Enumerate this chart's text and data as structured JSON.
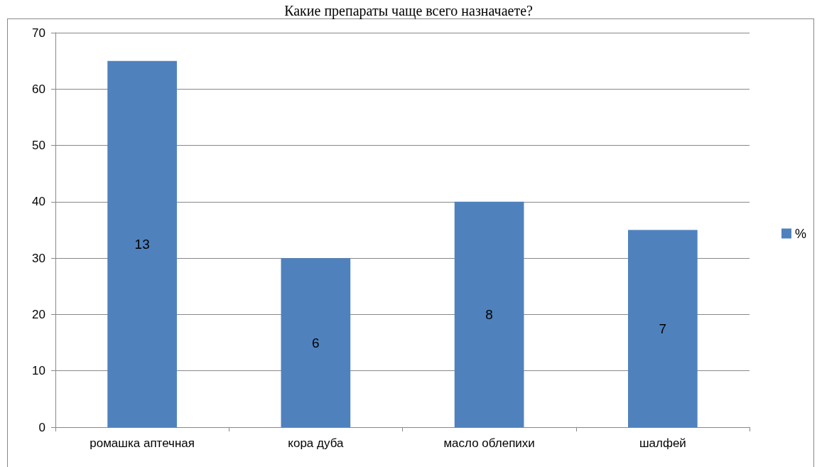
{
  "chart_data": {
    "type": "bar",
    "title": "Какие препараты чаще всего назначаете?",
    "categories": [
      "ромашка аптечная",
      "кора дуба",
      "масло облепихи",
      "шалфей"
    ],
    "series": [
      {
        "name": "%",
        "color": "#4f81bd",
        "values": [
          65,
          30,
          40,
          35
        ]
      }
    ],
    "value_labels": [
      "13",
      "6",
      "8",
      "7"
    ],
    "ylim": [
      0,
      70
    ],
    "yticks": [
      0,
      10,
      20,
      30,
      40,
      50,
      60,
      70
    ],
    "grid": "y",
    "legend": "right"
  }
}
